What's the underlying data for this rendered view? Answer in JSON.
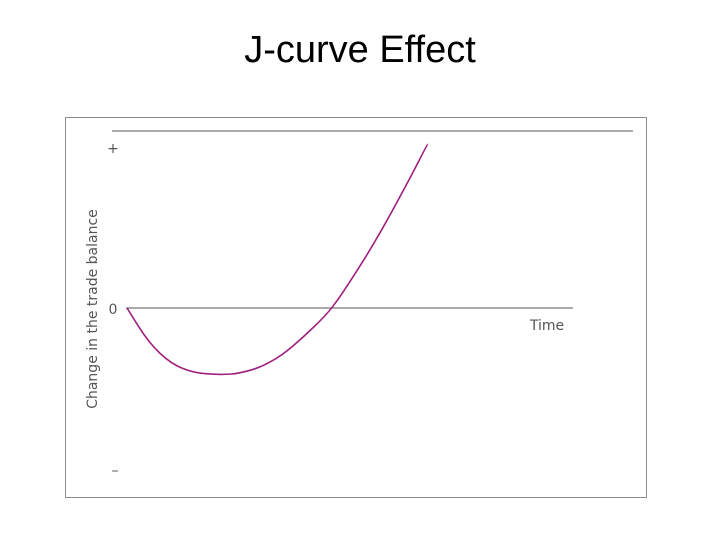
{
  "slide": {
    "title": "J-curve Effect"
  },
  "chart_data": {
    "type": "line",
    "title": "J-curve Effect",
    "xlabel": "Time",
    "ylabel": "Change in the trade balance",
    "y_tick_labels": {
      "top": "+",
      "zero": "0",
      "bottom": "–"
    },
    "ylim": [
      -1,
      1
    ],
    "xlim": [
      0,
      1
    ],
    "grid": false,
    "series": [
      {
        "color": "#a0207f",
        "x": [
          0.0,
          0.05,
          0.1,
          0.15,
          0.2,
          0.225,
          0.25,
          0.3,
          0.35,
          0.4,
          0.45,
          0.48,
          0.52,
          0.56,
          0.6,
          0.64,
          0.68
        ],
        "y": [
          0.0,
          -0.215,
          -0.34,
          -0.395,
          -0.405,
          -0.405,
          -0.4,
          -0.365,
          -0.29,
          -0.175,
          -0.045,
          0.06,
          0.225,
          0.4,
          0.59,
          0.79,
          1.0
        ]
      }
    ]
  }
}
